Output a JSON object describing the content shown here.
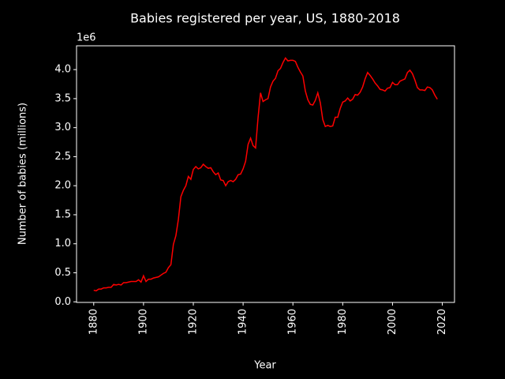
{
  "chart_data": {
    "type": "line",
    "title": "Babies registered per year, US, 1880-2018",
    "xlabel": "Year",
    "ylabel": "Number of babies (millions)",
    "y_offset_label": "1e6",
    "x": [
      1880,
      1881,
      1882,
      1883,
      1884,
      1885,
      1886,
      1887,
      1888,
      1889,
      1890,
      1891,
      1892,
      1893,
      1894,
      1895,
      1896,
      1897,
      1898,
      1899,
      1900,
      1901,
      1902,
      1903,
      1904,
      1905,
      1906,
      1907,
      1908,
      1909,
      1910,
      1911,
      1912,
      1913,
      1914,
      1915,
      1916,
      1917,
      1918,
      1919,
      1920,
      1921,
      1922,
      1923,
      1924,
      1925,
      1926,
      1927,
      1928,
      1929,
      1930,
      1931,
      1932,
      1933,
      1934,
      1935,
      1936,
      1937,
      1938,
      1939,
      1940,
      1941,
      1942,
      1943,
      1944,
      1945,
      1946,
      1947,
      1948,
      1949,
      1950,
      1951,
      1952,
      1953,
      1954,
      1955,
      1956,
      1957,
      1958,
      1959,
      1960,
      1961,
      1962,
      1963,
      1964,
      1965,
      1966,
      1967,
      1968,
      1969,
      1970,
      1971,
      1972,
      1973,
      1974,
      1975,
      1976,
      1977,
      1978,
      1979,
      1980,
      1981,
      1982,
      1983,
      1984,
      1985,
      1986,
      1987,
      1988,
      1989,
      1990,
      1991,
      1992,
      1993,
      1994,
      1995,
      1996,
      1997,
      1998,
      1999,
      2000,
      2001,
      2002,
      2003,
      2004,
      2005,
      2006,
      2007,
      2008,
      2009,
      2010,
      2011,
      2012,
      2013,
      2014,
      2015,
      2016,
      2017,
      2018
    ],
    "series": [
      {
        "color": "#ff0000",
        "values": [
          0.2,
          0.19,
          0.22,
          0.22,
          0.24,
          0.24,
          0.25,
          0.25,
          0.3,
          0.29,
          0.3,
          0.29,
          0.33,
          0.33,
          0.34,
          0.35,
          0.35,
          0.35,
          0.38,
          0.34,
          0.45,
          0.35,
          0.39,
          0.39,
          0.41,
          0.42,
          0.43,
          0.46,
          0.49,
          0.51,
          0.59,
          0.64,
          0.99,
          1.14,
          1.42,
          1.81,
          1.92,
          2.0,
          2.16,
          2.11,
          2.28,
          2.33,
          2.29,
          2.31,
          2.37,
          2.33,
          2.3,
          2.31,
          2.24,
          2.19,
          2.22,
          2.1,
          2.09,
          2.0,
          2.07,
          2.09,
          2.07,
          2.11,
          2.19,
          2.2,
          2.29,
          2.42,
          2.71,
          2.82,
          2.69,
          2.65,
          3.17,
          3.6,
          3.45,
          3.48,
          3.5,
          3.7,
          3.8,
          3.85,
          3.98,
          4.02,
          4.12,
          4.2,
          4.15,
          4.16,
          4.16,
          4.14,
          4.04,
          3.96,
          3.89,
          3.63,
          3.48,
          3.4,
          3.39,
          3.47,
          3.6,
          3.43,
          3.14,
          3.02,
          3.04,
          3.02,
          3.03,
          3.18,
          3.18,
          3.33,
          3.44,
          3.46,
          3.51,
          3.46,
          3.49,
          3.57,
          3.56,
          3.61,
          3.7,
          3.84,
          3.95,
          3.9,
          3.84,
          3.77,
          3.72,
          3.66,
          3.65,
          3.63,
          3.68,
          3.69,
          3.78,
          3.74,
          3.74,
          3.8,
          3.82,
          3.84,
          3.95,
          3.99,
          3.93,
          3.82,
          3.69,
          3.65,
          3.65,
          3.64,
          3.7,
          3.69,
          3.65,
          3.56,
          3.49
        ]
      }
    ],
    "xlim": [
      1873.1,
      2024.9
    ],
    "ylim": [
      -0.01,
      4.41
    ],
    "xticks": [
      1880,
      1900,
      1920,
      1940,
      1960,
      1980,
      2000,
      2020
    ],
    "yticks": [
      {
        "value": 0,
        "label": "0.0"
      },
      {
        "value": 0.5,
        "label": "0.5"
      },
      {
        "value": 1,
        "label": "1.0"
      },
      {
        "value": 1.5,
        "label": "1.5"
      },
      {
        "value": 2,
        "label": "2.0"
      },
      {
        "value": 2.5,
        "label": "2.5"
      },
      {
        "value": 3,
        "label": "3.0"
      },
      {
        "value": 3.5,
        "label": "3.5"
      },
      {
        "value": 4,
        "label": "4.0"
      }
    ],
    "grid": false
  }
}
